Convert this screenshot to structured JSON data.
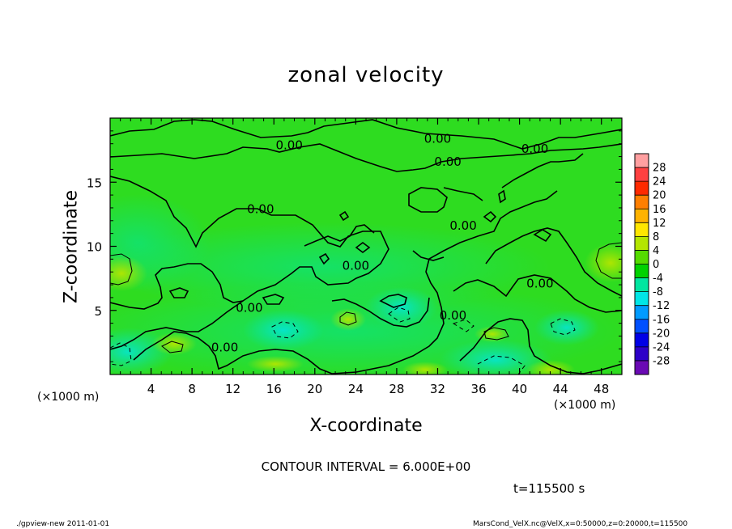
{
  "chart_data": {
    "type": "heatmap",
    "title": "zonal velocity",
    "xlabel": "X-coordinate",
    "ylabel": "Z-coordinate",
    "x_unit_label": "(×1000 m)",
    "x_ticks": [
      4,
      8,
      12,
      16,
      20,
      24,
      28,
      32,
      36,
      40,
      44,
      48
    ],
    "y_ticks": [
      5,
      10,
      15
    ],
    "xlim": [
      0,
      50
    ],
    "ylim": [
      0,
      20
    ],
    "colorbar": {
      "levels": [
        28,
        24,
        20,
        16,
        12,
        8,
        4,
        0,
        -4,
        -8,
        -12,
        -16,
        -20,
        -24,
        -28
      ],
      "colors": [
        "#ff9fa0",
        "#ff4040",
        "#ff2a00",
        "#ff7f00",
        "#ffb300",
        "#ffe600",
        "#b4e600",
        "#55dc00",
        "#00d200",
        "#00e6a0",
        "#00e6e6",
        "#009bff",
        "#0050ff",
        "#0000e6",
        "#2d00c8",
        "#6a0ab4"
      ]
    },
    "contour_labels": [
      {
        "text": "0.00",
        "x": 17.5,
        "z": 17.9
      },
      {
        "text": "0.00",
        "x": 32,
        "z": 18.4
      },
      {
        "text": "0.00",
        "x": 41.5,
        "z": 17.6
      },
      {
        "text": "0.00",
        "x": 33,
        "z": 16.6
      },
      {
        "text": "0.00",
        "x": 14.7,
        "z": 12.9
      },
      {
        "text": "0.00",
        "x": 34.5,
        "z": 11.6
      },
      {
        "text": "0.00",
        "x": 24,
        "z": 8.5
      },
      {
        "text": "0.00",
        "x": 42,
        "z": 7.1
      },
      {
        "text": "0.00",
        "x": 13.6,
        "z": 5.2
      },
      {
        "text": "0.00",
        "x": 33.5,
        "z": 4.6
      },
      {
        "text": "0.00",
        "x": 11.2,
        "z": 2.1
      }
    ],
    "contour_interval": "CONTOUR INTERVAL = 6.000E+00",
    "time": "t=115500 s"
  },
  "footer": {
    "left": "./gpview-new   2011-01-01",
    "right": "MarsCond_VelX.nc@VelX,x=0:50000,z=0:20000,t=115500"
  }
}
